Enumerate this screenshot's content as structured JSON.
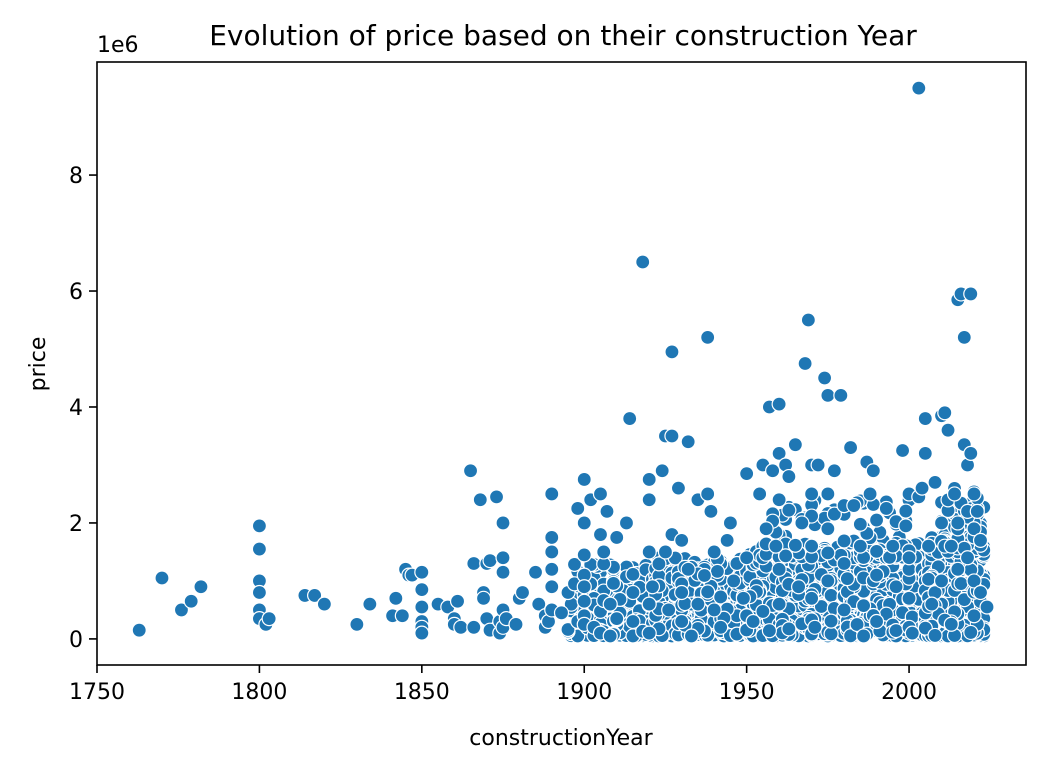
{
  "chart_data": {
    "type": "scatter",
    "title": "Evolution of price based on their construction Year",
    "xlabel": "constructionYear",
    "ylabel": "price",
    "y_offset_label": "1e6",
    "xlim": [
      1750,
      2036
    ],
    "ylim": [
      -0.45,
      9.95
    ],
    "y_scale_factor": 1000000,
    "xticks": [
      1750,
      1800,
      1850,
      1900,
      1950,
      2000
    ],
    "yticks": [
      0,
      2,
      4,
      6,
      8
    ],
    "grid": false,
    "legend": "none",
    "marker_color": "#1f77b4",
    "points": [
      [
        1763,
        0.15
      ],
      [
        1770,
        1.05
      ],
      [
        1776,
        0.5
      ],
      [
        1779,
        0.65
      ],
      [
        1782,
        0.9
      ],
      [
        1800,
        1.95
      ],
      [
        1800,
        1.55
      ],
      [
        1800,
        1.0
      ],
      [
        1800,
        0.8
      ],
      [
        1800,
        0.5
      ],
      [
        1800,
        0.35
      ],
      [
        1802,
        0.25
      ],
      [
        1803,
        0.35
      ],
      [
        1814,
        0.75
      ],
      [
        1817,
        0.75
      ],
      [
        1820,
        0.6
      ],
      [
        1830,
        0.25
      ],
      [
        1834,
        0.6
      ],
      [
        1841,
        0.4
      ],
      [
        1842,
        0.7
      ],
      [
        1844,
        0.4
      ],
      [
        1845,
        1.2
      ],
      [
        1846,
        1.1
      ],
      [
        1847,
        1.1
      ],
      [
        1850,
        1.15
      ],
      [
        1850,
        0.85
      ],
      [
        1850,
        0.55
      ],
      [
        1850,
        0.3
      ],
      [
        1850,
        0.2
      ],
      [
        1850,
        0.1
      ],
      [
        1855,
        0.6
      ],
      [
        1858,
        0.55
      ],
      [
        1860,
        0.35
      ],
      [
        1860,
        0.25
      ],
      [
        1861,
        0.65
      ],
      [
        1862,
        0.2
      ],
      [
        1865,
        2.9
      ],
      [
        1866,
        0.2
      ],
      [
        1866,
        1.3
      ],
      [
        1868,
        2.4
      ],
      [
        1869,
        0.8
      ],
      [
        1869,
        0.7
      ],
      [
        1870,
        1.3
      ],
      [
        1870,
        0.35
      ],
      [
        1871,
        1.35
      ],
      [
        1871,
        0.15
      ],
      [
        1873,
        2.45
      ],
      [
        1874,
        0.3
      ],
      [
        1874,
        0.1
      ],
      [
        1875,
        2.0
      ],
      [
        1875,
        1.4
      ],
      [
        1875,
        1.15
      ],
      [
        1875,
        0.5
      ],
      [
        1875,
        0.2
      ],
      [
        1876,
        0.35
      ],
      [
        1879,
        0.25
      ],
      [
        1880,
        0.7
      ],
      [
        1881,
        0.8
      ],
      [
        1885,
        1.15
      ],
      [
        1886,
        0.6
      ],
      [
        1888,
        0.2
      ],
      [
        1888,
        0.4
      ],
      [
        1889,
        0.3
      ],
      [
        1890,
        2.5
      ],
      [
        1890,
        1.75
      ],
      [
        1890,
        1.5
      ],
      [
        1890,
        1.2
      ],
      [
        1890,
        0.9
      ],
      [
        1890,
        0.5
      ],
      [
        1893,
        0.45
      ],
      [
        1895,
        0.8
      ],
      [
        1897,
        0.95
      ],
      [
        1898,
        2.25
      ],
      [
        1898,
        0.3
      ],
      [
        1900,
        2.75
      ],
      [
        1900,
        2.0
      ],
      [
        1900,
        1.45
      ],
      [
        1900,
        1.1
      ],
      [
        1900,
        0.9
      ],
      [
        1900,
        0.65
      ],
      [
        1900,
        0.4
      ],
      [
        1900,
        0.25
      ],
      [
        1902,
        2.4
      ],
      [
        1903,
        0.2
      ],
      [
        1905,
        2.5
      ],
      [
        1905,
        1.8
      ],
      [
        1905,
        0.1
      ],
      [
        1906,
        1.5
      ],
      [
        1907,
        2.2
      ],
      [
        1908,
        0.6
      ],
      [
        1908,
        0.05
      ],
      [
        1910,
        1.75
      ],
      [
        1910,
        0.35
      ],
      [
        1913,
        2.0
      ],
      [
        1914,
        3.8
      ],
      [
        1915,
        0.8
      ],
      [
        1915,
        0.3
      ],
      [
        1918,
        6.5
      ],
      [
        1920,
        2.75
      ],
      [
        1920,
        2.4
      ],
      [
        1920,
        1.5
      ],
      [
        1920,
        0.6
      ],
      [
        1920,
        0.1
      ],
      [
        1921,
        0.9
      ],
      [
        1924,
        2.9
      ],
      [
        1925,
        3.5
      ],
      [
        1925,
        1.5
      ],
      [
        1926,
        0.5
      ],
      [
        1927,
        4.95
      ],
      [
        1927,
        3.5
      ],
      [
        1927,
        1.8
      ],
      [
        1929,
        2.6
      ],
      [
        1930,
        1.7
      ],
      [
        1930,
        0.8
      ],
      [
        1930,
        0.3
      ],
      [
        1932,
        3.4
      ],
      [
        1932,
        1.2
      ],
      [
        1933,
        0.05
      ],
      [
        1935,
        2.4
      ],
      [
        1935,
        0.6
      ],
      [
        1938,
        5.2
      ],
      [
        1938,
        2.5
      ],
      [
        1939,
        2.2
      ],
      [
        1940,
        1.5
      ],
      [
        1940,
        0.5
      ],
      [
        1942,
        0.2
      ],
      [
        1944,
        1.7
      ],
      [
        1945,
        2.0
      ],
      [
        1946,
        1.0
      ],
      [
        1947,
        1.3
      ],
      [
        1949,
        0.7
      ],
      [
        1950,
        2.85
      ],
      [
        1950,
        1.4
      ],
      [
        1950,
        0.4
      ],
      [
        1952,
        0.3
      ],
      [
        1954,
        2.5
      ],
      [
        1955,
        3.0
      ],
      [
        1956,
        1.9
      ],
      [
        1957,
        4.0
      ],
      [
        1958,
        2.9
      ],
      [
        1959,
        1.6
      ],
      [
        1960,
        4.05
      ],
      [
        1960,
        3.2
      ],
      [
        1960,
        2.4
      ],
      [
        1960,
        1.2
      ],
      [
        1960,
        0.6
      ],
      [
        1962,
        3.0
      ],
      [
        1963,
        2.8
      ],
      [
        1965,
        3.35
      ],
      [
        1966,
        0.9
      ],
      [
        1967,
        2.0
      ],
      [
        1968,
        4.75
      ],
      [
        1969,
        5.5
      ],
      [
        1970,
        3.0
      ],
      [
        1970,
        2.5
      ],
      [
        1970,
        1.6
      ],
      [
        1970,
        0.7
      ],
      [
        1971,
        0.2
      ],
      [
        1972,
        3.0
      ],
      [
        1974,
        4.5
      ],
      [
        1975,
        4.2
      ],
      [
        1975,
        2.5
      ],
      [
        1975,
        1.9
      ],
      [
        1975,
        1.0
      ],
      [
        1977,
        2.9
      ],
      [
        1979,
        4.2
      ],
      [
        1980,
        2.3
      ],
      [
        1980,
        1.3
      ],
      [
        1980,
        0.5
      ],
      [
        1982,
        3.3
      ],
      [
        1983,
        2.3
      ],
      [
        1985,
        1.6
      ],
      [
        1987,
        3.05
      ],
      [
        1988,
        2.5
      ],
      [
        1989,
        2.9
      ],
      [
        1990,
        2.05
      ],
      [
        1990,
        1.1
      ],
      [
        1990,
        0.3
      ],
      [
        1993,
        2.25
      ],
      [
        1995,
        1.6
      ],
      [
        1996,
        0.9
      ],
      [
        1998,
        3.25
      ],
      [
        1999,
        1.95
      ],
      [
        2000,
        2.5
      ],
      [
        2000,
        1.4
      ],
      [
        2000,
        0.7
      ],
      [
        2000,
        0.2
      ],
      [
        2001,
        0.1
      ],
      [
        2003,
        9.5
      ],
      [
        2003,
        2.45
      ],
      [
        2004,
        2.6
      ],
      [
        2005,
        3.8
      ],
      [
        2005,
        3.2
      ],
      [
        2006,
        1.6
      ],
      [
        2007,
        0.6
      ],
      [
        2008,
        2.7
      ],
      [
        2010,
        3.85
      ],
      [
        2010,
        2.0
      ],
      [
        2010,
        1.0
      ],
      [
        2011,
        3.9
      ],
      [
        2012,
        3.6
      ],
      [
        2013,
        1.6
      ],
      [
        2014,
        2.5
      ],
      [
        2015,
        5.85
      ],
      [
        2015,
        2.0
      ],
      [
        2015,
        1.2
      ],
      [
        2016,
        5.95
      ],
      [
        2017,
        5.2
      ],
      [
        2017,
        3.35
      ],
      [
        2018,
        3.0
      ],
      [
        2018,
        2.2
      ],
      [
        2018,
        1.4
      ],
      [
        2019,
        5.95
      ],
      [
        2019,
        3.2
      ],
      [
        2020,
        2.5
      ],
      [
        2020,
        1.9
      ],
      [
        2020,
        1.0
      ],
      [
        2020,
        0.4
      ],
      [
        2021,
        2.2
      ],
      [
        2022,
        1.7
      ],
      [
        2022,
        0.8
      ],
      [
        2024,
        0.55
      ]
    ],
    "dense_bands": [
      {
        "x_range": [
          1895,
          1922
        ],
        "y_range": [
          0.05,
          1.3
        ],
        "count": 220,
        "seed": 11
      },
      {
        "x_range": [
          1922,
          1950
        ],
        "y_range": [
          0.05,
          1.4
        ],
        "count": 320,
        "seed": 23
      },
      {
        "x_range": [
          1950,
          1980
        ],
        "y_range": [
          0.05,
          1.6
        ],
        "count": 380,
        "seed": 37
      },
      {
        "x_range": [
          1980,
          2005
        ],
        "y_range": [
          0.05,
          1.7
        ],
        "count": 360,
        "seed": 53
      },
      {
        "x_range": [
          2005,
          2023
        ],
        "y_range": [
          0.05,
          1.8
        ],
        "count": 420,
        "seed": 71
      },
      {
        "x_range": [
          2010,
          2023
        ],
        "y_range": [
          1.5,
          2.6
        ],
        "count": 80,
        "seed": 89
      },
      {
        "x_range": [
          1955,
          2000
        ],
        "y_range": [
          1.4,
          2.5
        ],
        "count": 90,
        "seed": 97
      }
    ]
  }
}
